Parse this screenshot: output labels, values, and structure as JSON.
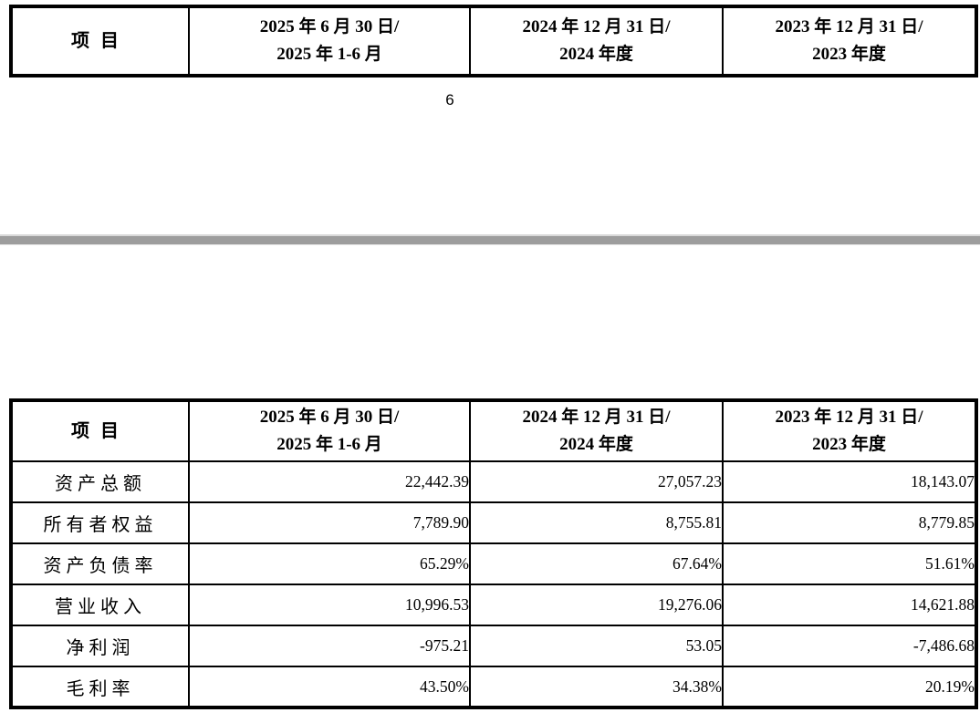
{
  "colors": {
    "table_border": "#000000",
    "text": "#000000",
    "page_separator": "#9d9d9d",
    "page_background": "#ffffff"
  },
  "table_header": {
    "item_label": "项目",
    "col1_line1": "2025 年 6 月 30 日/",
    "col1_line2": "2025 年 1-6 月",
    "col2_line1": "2024 年 12 月 31 日/",
    "col2_line2": "2024 年度",
    "col3_line1": "2023 年 12 月 31 日/",
    "col3_line2": "2023 年度"
  },
  "page1": {
    "page_number": "6"
  },
  "page2": {
    "table": {
      "rows": [
        {
          "label": "资产总额",
          "values": [
            "22,442.39",
            "27,057.23",
            "18,143.07"
          ]
        },
        {
          "label": "所有者权益",
          "values": [
            "7,789.90",
            "8,755.81",
            "8,779.85"
          ]
        },
        {
          "label": "资产负债率",
          "values": [
            "65.29%",
            "67.64%",
            "51.61%"
          ]
        },
        {
          "label": "营业收入",
          "values": [
            "10,996.53",
            "19,276.06",
            "14,621.88"
          ]
        },
        {
          "label": "净利润",
          "values": [
            "-975.21",
            "53.05",
            "-7,486.68"
          ]
        },
        {
          "label": "毛利率",
          "values": [
            "43.50%",
            "34.38%",
            "20.19%"
          ]
        }
      ]
    }
  }
}
